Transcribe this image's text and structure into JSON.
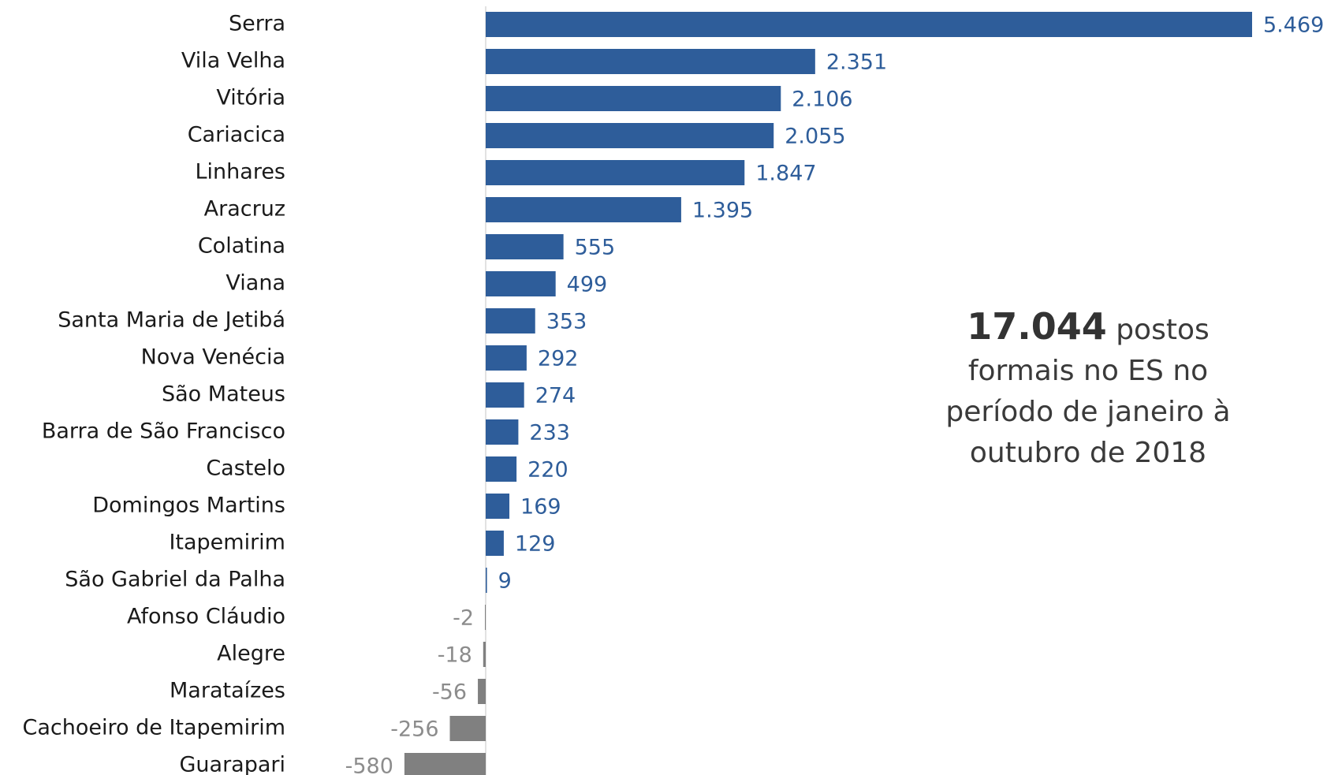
{
  "chart_data": {
    "type": "bar",
    "orientation": "horizontal",
    "categories": [
      "Serra",
      "Vila Velha",
      "Vitória",
      "Cariacica",
      "Linhares",
      "Aracruz",
      "Colatina",
      "Viana",
      "Santa Maria de Jetibá",
      "Nova Venécia",
      "São Mateus",
      "Barra de São Francisco",
      "Castelo",
      "Domingos Martins",
      "Itapemirim",
      "São Gabriel da Palha",
      "Afonso Cláudio",
      "Alegre",
      "Marataízes",
      "Cachoeiro de Itapemirim",
      "Guarapari"
    ],
    "values": [
      5469,
      2351,
      2106,
      2055,
      1847,
      1395,
      555,
      499,
      353,
      292,
      274,
      233,
      220,
      169,
      129,
      9,
      -2,
      -18,
      -56,
      -256,
      -580
    ],
    "data_labels": [
      "5.469",
      "2.351",
      "2.106",
      "2.055",
      "1.847",
      "1.395",
      "555",
      "499",
      "353",
      "292",
      "274",
      "233",
      "220",
      "169",
      "129",
      "9",
      "-2",
      "-18",
      "-56",
      "-256",
      "-580"
    ],
    "title": "",
    "xlabel": "",
    "ylabel": "",
    "xlim": [
      -600,
      5469
    ],
    "grid": false,
    "legend": "none",
    "colors": {
      "positive": "#2e5d9a",
      "negative": "#808080",
      "positive_label": "#2e5d9a",
      "negative_label": "#8c8c8c",
      "axis": "#d9d9d9"
    }
  },
  "annotation": {
    "highlight": "17.044",
    "line1_rest": " postos",
    "line2": "formais no ES no",
    "line3": "período de janeiro à",
    "line4": "outubro de 2018"
  }
}
